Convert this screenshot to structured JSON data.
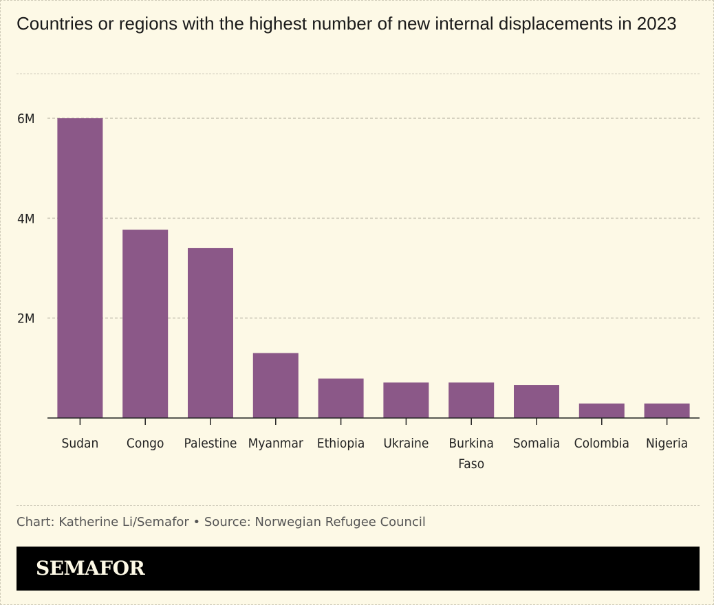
{
  "title": "Countries or regions with the highest number of new internal displacements in 2023",
  "source_line": "Chart: Katherine Li/Semafor • Source: Norwegian Refugee Council",
  "brand": "SEMAFOR",
  "colors": {
    "background": "#fdf9e6",
    "bar": "#8b5888",
    "brand_bar": "#000000",
    "grid": "#c8c4b4"
  },
  "chart_data": {
    "type": "bar",
    "title": "Countries or regions with the highest number of new internal displacements in 2023",
    "categories": [
      "Sudan",
      "Congo",
      "Palestine",
      "Myanmar",
      "Ethiopia",
      "Ukraine",
      "Burkina Faso",
      "Somalia",
      "Colombia",
      "Nigeria"
    ],
    "category_label_lines": [
      [
        "Sudan"
      ],
      [
        "Congo"
      ],
      [
        "Palestine"
      ],
      [
        "Myanmar"
      ],
      [
        "Ethiopia"
      ],
      [
        "Ukraine"
      ],
      [
        "Burkina",
        "Faso"
      ],
      [
        "Somalia"
      ],
      [
        "Colombia"
      ],
      [
        "Nigeria"
      ]
    ],
    "values": [
      6000000,
      3770000,
      3400000,
      1300000,
      790000,
      710000,
      710000,
      660000,
      290000,
      290000
    ],
    "ylim": [
      0,
      6000000
    ],
    "yticks": [
      {
        "value": 2000000,
        "label": "2M"
      },
      {
        "value": 4000000,
        "label": "4M"
      },
      {
        "value": 6000000,
        "label": "6M"
      }
    ],
    "xlabel": "",
    "ylabel": "",
    "grid": true,
    "legend": "none"
  }
}
